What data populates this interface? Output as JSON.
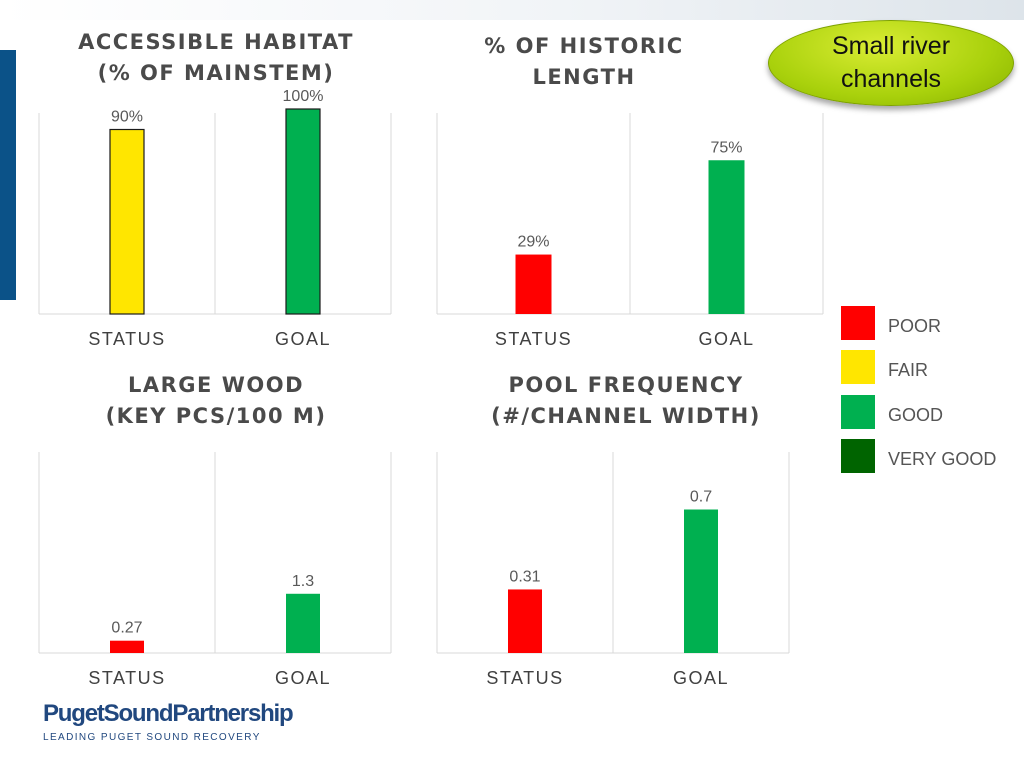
{
  "badge": {
    "text": "Small river\nchannels"
  },
  "legend": [
    {
      "label": "POOR",
      "color": "#ff0000"
    },
    {
      "label": "FAIR",
      "color": "#ffe600"
    },
    {
      "label": "GOOD",
      "color": "#00b050"
    },
    {
      "label": "VERY GOOD",
      "color": "#006400"
    }
  ],
  "logo": {
    "name": "PugetSoundPartnership",
    "tagline": "LEADING PUGET SOUND RECOVERY"
  },
  "chart_data": [
    {
      "type": "bar",
      "title": "ACCESSIBLE HABITAT\n(% OF MAINSTEM)",
      "categories": [
        "STATUS",
        "GOAL"
      ],
      "values": [
        90,
        100
      ],
      "value_labels": [
        "90%",
        "100%"
      ],
      "colors": [
        "#ffe600",
        "#00b050"
      ],
      "outlined": true,
      "ylim": [
        0,
        100
      ],
      "grid": false
    },
    {
      "type": "bar",
      "title": "% OF HISTORIC\nLENGTH",
      "categories": [
        "STATUS",
        "GOAL"
      ],
      "values": [
        29,
        75
      ],
      "value_labels": [
        "29%",
        "75%"
      ],
      "colors": [
        "#ff0000",
        "#00b050"
      ],
      "outlined": false,
      "ylim": [
        0,
        100
      ],
      "grid": false
    },
    {
      "type": "bar",
      "title": "LARGE WOOD\n(KEY PCS/100 M)",
      "categories": [
        "STATUS",
        "GOAL"
      ],
      "values": [
        0.27,
        1.3
      ],
      "value_labels": [
        "0.27",
        "1.3"
      ],
      "colors": [
        "#ff0000",
        "#00b050"
      ],
      "outlined": false,
      "ylim": [
        0,
        4.5
      ],
      "grid": false
    },
    {
      "type": "bar",
      "title": "POOL FREQUENCY\n(#/CHANNEL WIDTH)",
      "categories": [
        "STATUS",
        "GOAL"
      ],
      "values": [
        0.31,
        0.7
      ],
      "value_labels": [
        "0.31",
        "0.7"
      ],
      "colors": [
        "#ff0000",
        "#00b050"
      ],
      "outlined": false,
      "ylim": [
        0,
        1.0
      ],
      "grid": false
    }
  ]
}
